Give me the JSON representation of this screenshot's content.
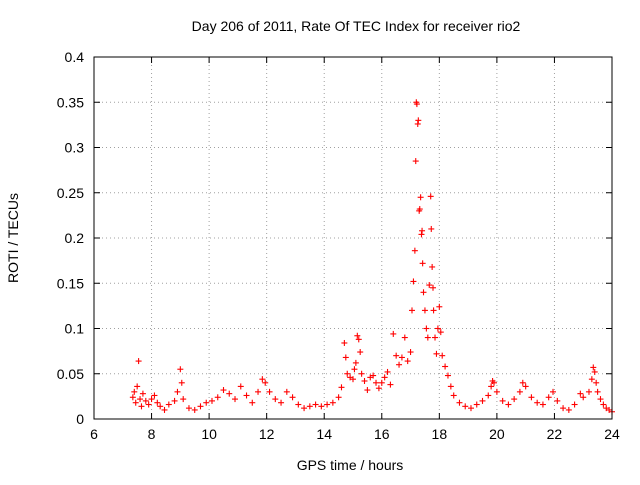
{
  "chart_data": {
    "type": "scatter",
    "title": "Day 206 of 2011, Rate Of TEC Index for receiver rio2",
    "xlabel": "GPS time / hours",
    "ylabel": "ROTI / TECUs",
    "xlim": [
      6,
      24
    ],
    "ylim": [
      0,
      0.4
    ],
    "x_ticks": [
      6,
      8,
      10,
      12,
      14,
      16,
      18,
      20,
      22,
      24
    ],
    "y_ticks": [
      0,
      0.05,
      0.1,
      0.15,
      0.2,
      0.25,
      0.3,
      0.35,
      0.4
    ],
    "x_tick_labels": [
      "6",
      "8",
      "10",
      "12",
      "14",
      "16",
      "18",
      "20",
      "22",
      "24"
    ],
    "y_tick_labels": [
      "0",
      "0.05",
      "0.1",
      "0.15",
      "0.2",
      "0.25",
      "0.3",
      "0.35",
      "0.4"
    ],
    "grid": true,
    "marker": "+",
    "color": "#ff0000",
    "series": [
      {
        "name": "ROTI",
        "points": [
          [
            7.35,
            0.024
          ],
          [
            7.4,
            0.03
          ],
          [
            7.45,
            0.018
          ],
          [
            7.5,
            0.036
          ],
          [
            7.55,
            0.064
          ],
          [
            7.6,
            0.022
          ],
          [
            7.65,
            0.014
          ],
          [
            7.7,
            0.028
          ],
          [
            7.8,
            0.02
          ],
          [
            7.9,
            0.016
          ],
          [
            8.0,
            0.022
          ],
          [
            8.1,
            0.026
          ],
          [
            8.2,
            0.018
          ],
          [
            8.3,
            0.014
          ],
          [
            8.45,
            0.01
          ],
          [
            8.6,
            0.016
          ],
          [
            8.8,
            0.02
          ],
          [
            8.9,
            0.03
          ],
          [
            9.0,
            0.055
          ],
          [
            9.05,
            0.04
          ],
          [
            9.1,
            0.022
          ],
          [
            9.3,
            0.012
          ],
          [
            9.5,
            0.01
          ],
          [
            9.7,
            0.014
          ],
          [
            9.9,
            0.018
          ],
          [
            10.1,
            0.02
          ],
          [
            10.3,
            0.024
          ],
          [
            10.5,
            0.032
          ],
          [
            10.7,
            0.028
          ],
          [
            10.9,
            0.022
          ],
          [
            11.1,
            0.036
          ],
          [
            11.3,
            0.026
          ],
          [
            11.5,
            0.018
          ],
          [
            11.7,
            0.03
          ],
          [
            11.85,
            0.044
          ],
          [
            11.95,
            0.04
          ],
          [
            12.1,
            0.03
          ],
          [
            12.3,
            0.022
          ],
          [
            12.5,
            0.018
          ],
          [
            12.7,
            0.03
          ],
          [
            12.9,
            0.024
          ],
          [
            13.1,
            0.016
          ],
          [
            13.3,
            0.012
          ],
          [
            13.5,
            0.014
          ],
          [
            13.7,
            0.016
          ],
          [
            13.9,
            0.014
          ],
          [
            14.1,
            0.016
          ],
          [
            14.3,
            0.018
          ],
          [
            14.5,
            0.024
          ],
          [
            14.6,
            0.035
          ],
          [
            14.7,
            0.084
          ],
          [
            14.75,
            0.068
          ],
          [
            14.8,
            0.05
          ],
          [
            14.9,
            0.046
          ],
          [
            15.0,
            0.044
          ],
          [
            15.05,
            0.055
          ],
          [
            15.1,
            0.062
          ],
          [
            15.15,
            0.092
          ],
          [
            15.2,
            0.088
          ],
          [
            15.25,
            0.074
          ],
          [
            15.3,
            0.05
          ],
          [
            15.4,
            0.042
          ],
          [
            15.5,
            0.032
          ],
          [
            15.6,
            0.046
          ],
          [
            15.7,
            0.048
          ],
          [
            15.8,
            0.04
          ],
          [
            15.9,
            0.034
          ],
          [
            16.0,
            0.04
          ],
          [
            16.1,
            0.046
          ],
          [
            16.2,
            0.052
          ],
          [
            16.3,
            0.038
          ],
          [
            16.4,
            0.094
          ],
          [
            16.5,
            0.07
          ],
          [
            16.6,
            0.06
          ],
          [
            16.7,
            0.068
          ],
          [
            16.8,
            0.09
          ],
          [
            16.9,
            0.064
          ],
          [
            17.0,
            0.074
          ],
          [
            17.05,
            0.12
          ],
          [
            17.1,
            0.152
          ],
          [
            17.15,
            0.186
          ],
          [
            17.18,
            0.285
          ],
          [
            17.2,
            0.35
          ],
          [
            17.22,
            0.348
          ],
          [
            17.25,
            0.326
          ],
          [
            17.27,
            0.33
          ],
          [
            17.3,
            0.23
          ],
          [
            17.32,
            0.232
          ],
          [
            17.35,
            0.245
          ],
          [
            17.38,
            0.204
          ],
          [
            17.4,
            0.208
          ],
          [
            17.42,
            0.172
          ],
          [
            17.45,
            0.14
          ],
          [
            17.5,
            0.12
          ],
          [
            17.55,
            0.1
          ],
          [
            17.6,
            0.09
          ],
          [
            17.65,
            0.148
          ],
          [
            17.7,
            0.246
          ],
          [
            17.72,
            0.21
          ],
          [
            17.75,
            0.168
          ],
          [
            17.78,
            0.145
          ],
          [
            17.8,
            0.12
          ],
          [
            17.85,
            0.09
          ],
          [
            17.9,
            0.072
          ],
          [
            17.95,
            0.1
          ],
          [
            18.0,
            0.124
          ],
          [
            18.05,
            0.096
          ],
          [
            18.1,
            0.07
          ],
          [
            18.2,
            0.058
          ],
          [
            18.3,
            0.048
          ],
          [
            18.4,
            0.036
          ],
          [
            18.5,
            0.026
          ],
          [
            18.7,
            0.018
          ],
          [
            18.9,
            0.014
          ],
          [
            19.1,
            0.012
          ],
          [
            19.3,
            0.016
          ],
          [
            19.5,
            0.02
          ],
          [
            19.7,
            0.026
          ],
          [
            19.8,
            0.036
          ],
          [
            19.85,
            0.042
          ],
          [
            19.9,
            0.04
          ],
          [
            20.0,
            0.03
          ],
          [
            20.2,
            0.02
          ],
          [
            20.4,
            0.016
          ],
          [
            20.6,
            0.022
          ],
          [
            20.8,
            0.03
          ],
          [
            20.9,
            0.04
          ],
          [
            21.0,
            0.036
          ],
          [
            21.2,
            0.024
          ],
          [
            21.4,
            0.018
          ],
          [
            21.6,
            0.016
          ],
          [
            21.8,
            0.024
          ],
          [
            21.95,
            0.03
          ],
          [
            22.1,
            0.02
          ],
          [
            22.3,
            0.012
          ],
          [
            22.5,
            0.01
          ],
          [
            22.7,
            0.016
          ],
          [
            22.9,
            0.028
          ],
          [
            23.0,
            0.024
          ],
          [
            23.2,
            0.03
          ],
          [
            23.3,
            0.044
          ],
          [
            23.35,
            0.057
          ],
          [
            23.4,
            0.052
          ],
          [
            23.45,
            0.04
          ],
          [
            23.5,
            0.03
          ],
          [
            23.6,
            0.022
          ],
          [
            23.7,
            0.016
          ],
          [
            23.8,
            0.012
          ],
          [
            23.9,
            0.01
          ],
          [
            24.0,
            0.008
          ]
        ]
      }
    ]
  }
}
